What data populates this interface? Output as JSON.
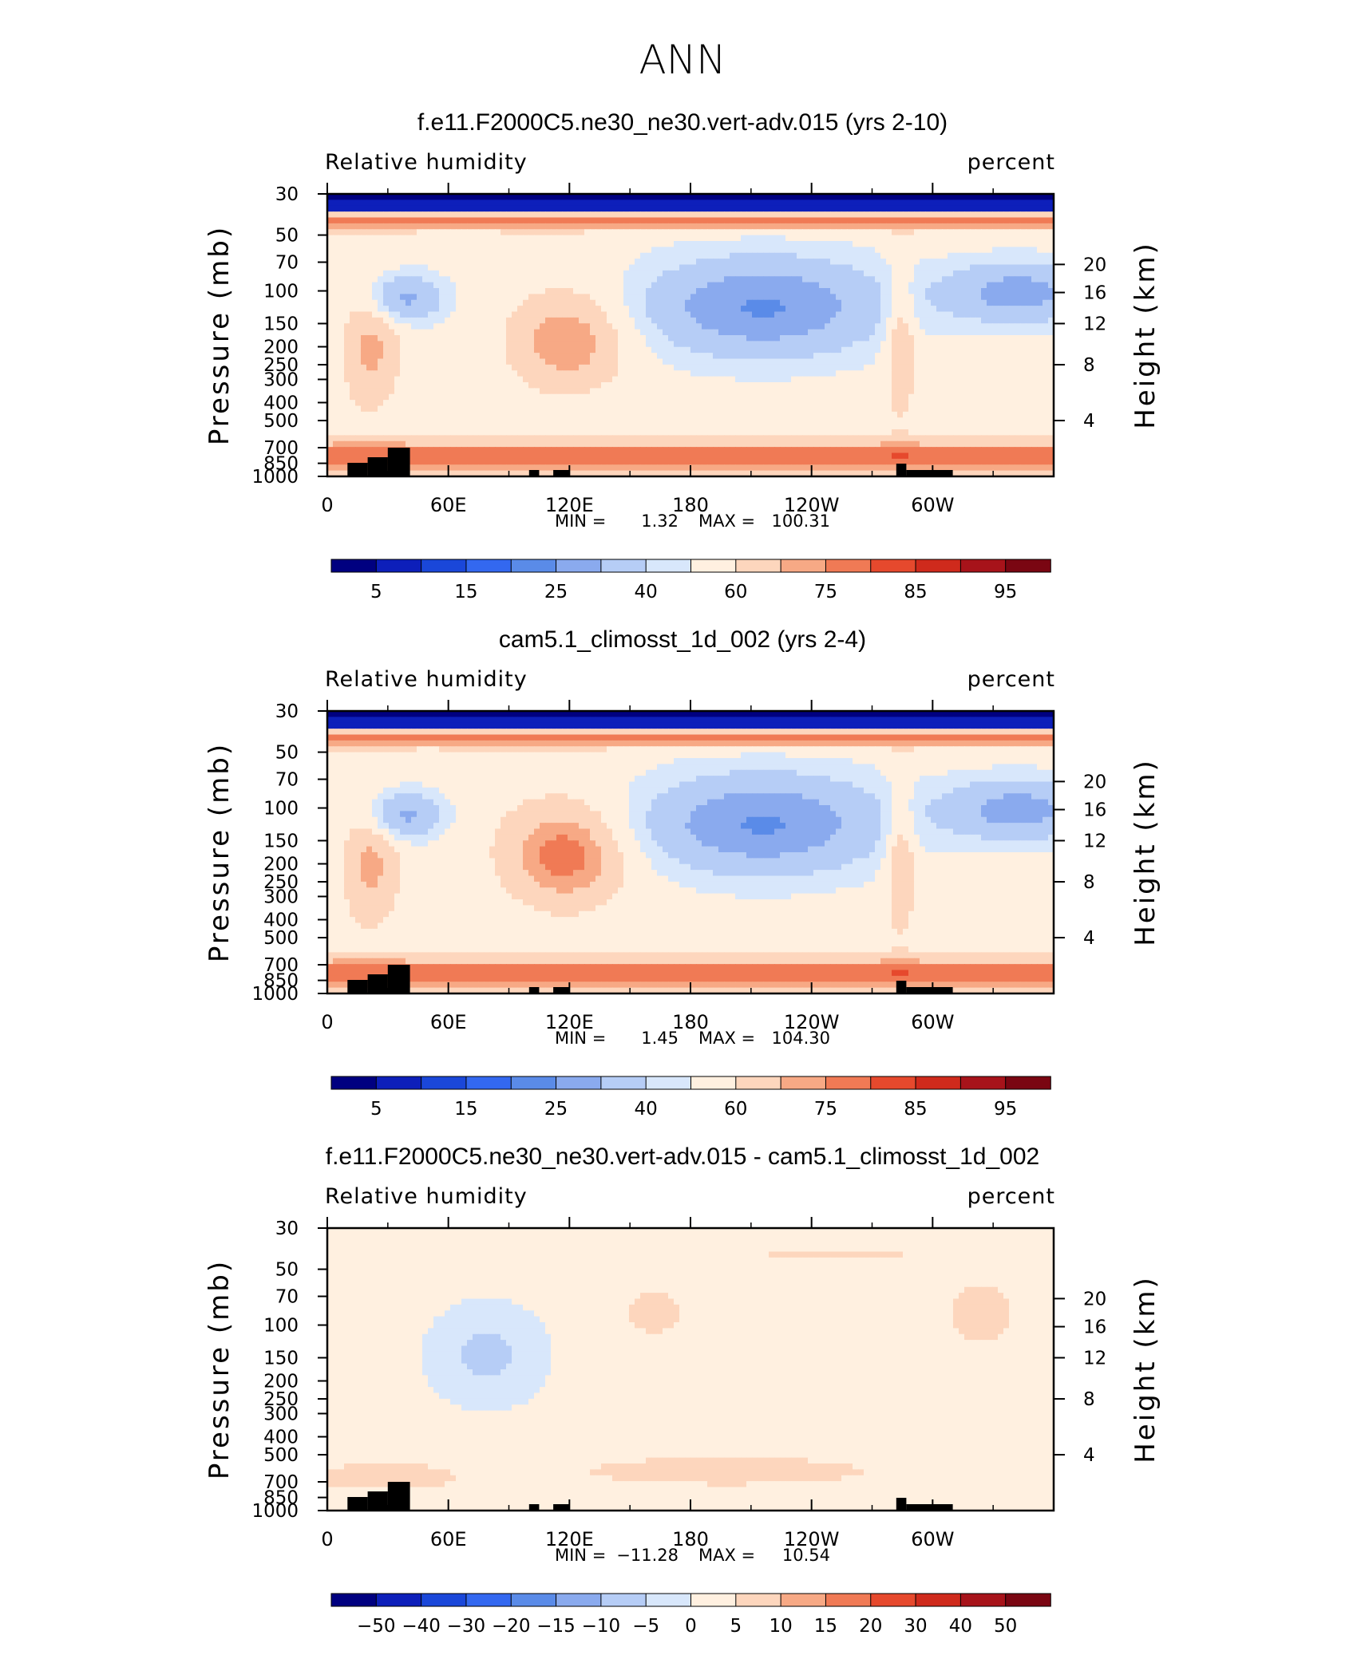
{
  "figure": {
    "title": "ANN"
  },
  "colors": {
    "diverging": [
      "#000080",
      "#0d1fba",
      "#1a47d9",
      "#3368f0",
      "#5a8be8",
      "#8aaaee",
      "#b6cdf6",
      "#d8e7fb",
      "#fff0e0",
      "#fdd6bd",
      "#f7a985",
      "#f07a55",
      "#e6492d",
      "#cf2a1c",
      "#a7131a",
      "#7a0612"
    ],
    "land": "#000000"
  },
  "chart_data": [
    {
      "type": "heatmap",
      "title": "f.e11.F2000C5.ne30_ne30.vert-adv.015 (yrs 2-10)",
      "left_label": "Relative humidity",
      "right_label": "percent",
      "ylabel": "Pressure (mb)",
      "ylabel_right": "Height (km)",
      "x_ticks": [
        "0",
        "60E",
        "120E",
        "180",
        "120W",
        "60W"
      ],
      "y_ticks": [
        "30",
        "50",
        "70",
        "100",
        "150",
        "200",
        "250",
        "300",
        "400",
        "500",
        "700",
        "850",
        "1000"
      ],
      "y_ticks_right": [
        "20",
        "16",
        "12",
        "8",
        "4"
      ],
      "min_label": "MIN =",
      "min_value": "1.32",
      "max_label": "MAX =",
      "max_value": "100.31",
      "colorbar_labels": [
        "5",
        "15",
        "25",
        "40",
        "60",
        "75",
        "85",
        "95"
      ],
      "xlim": [
        0,
        360
      ],
      "ylim": [
        1000,
        30
      ],
      "y_scale": "log"
    },
    {
      "type": "heatmap",
      "title": "cam5.1_climosst_1d_002 (yrs 2-4)",
      "left_label": "Relative humidity",
      "right_label": "percent",
      "ylabel": "Pressure (mb)",
      "ylabel_right": "Height (km)",
      "x_ticks": [
        "0",
        "60E",
        "120E",
        "180",
        "120W",
        "60W"
      ],
      "y_ticks": [
        "30",
        "50",
        "70",
        "100",
        "150",
        "200",
        "250",
        "300",
        "400",
        "500",
        "700",
        "850",
        "1000"
      ],
      "y_ticks_right": [
        "20",
        "16",
        "12",
        "8",
        "4"
      ],
      "min_label": "MIN =",
      "min_value": "1.45",
      "max_label": "MAX =",
      "max_value": "104.30",
      "colorbar_labels": [
        "5",
        "15",
        "25",
        "40",
        "60",
        "75",
        "85",
        "95"
      ],
      "xlim": [
        0,
        360
      ],
      "ylim": [
        1000,
        30
      ],
      "y_scale": "log"
    },
    {
      "type": "heatmap",
      "title": "f.e11.F2000C5.ne30_ne30.vert-adv.015 - cam5.1_climosst_1d_002",
      "left_label": "Relative humidity",
      "right_label": "percent",
      "ylabel": "Pressure (mb)",
      "ylabel_right": "Height (km)",
      "x_ticks": [
        "0",
        "60E",
        "120E",
        "180",
        "120W",
        "60W"
      ],
      "y_ticks": [
        "30",
        "50",
        "70",
        "100",
        "150",
        "200",
        "250",
        "300",
        "400",
        "500",
        "700",
        "850",
        "1000"
      ],
      "y_ticks_right": [
        "20",
        "16",
        "12",
        "8",
        "4"
      ],
      "min_label": "MIN =",
      "min_value": "−11.28",
      "max_label": "MAX =",
      "max_value": "10.54",
      "colorbar_labels": [
        "−50",
        "−40",
        "−30",
        "−20",
        "−15",
        "−10",
        "−5",
        "0",
        "5",
        "10",
        "15",
        "20",
        "30",
        "40",
        "50"
      ],
      "xlim": [
        0,
        360
      ],
      "ylim": [
        1000,
        30
      ],
      "y_scale": "log"
    }
  ]
}
